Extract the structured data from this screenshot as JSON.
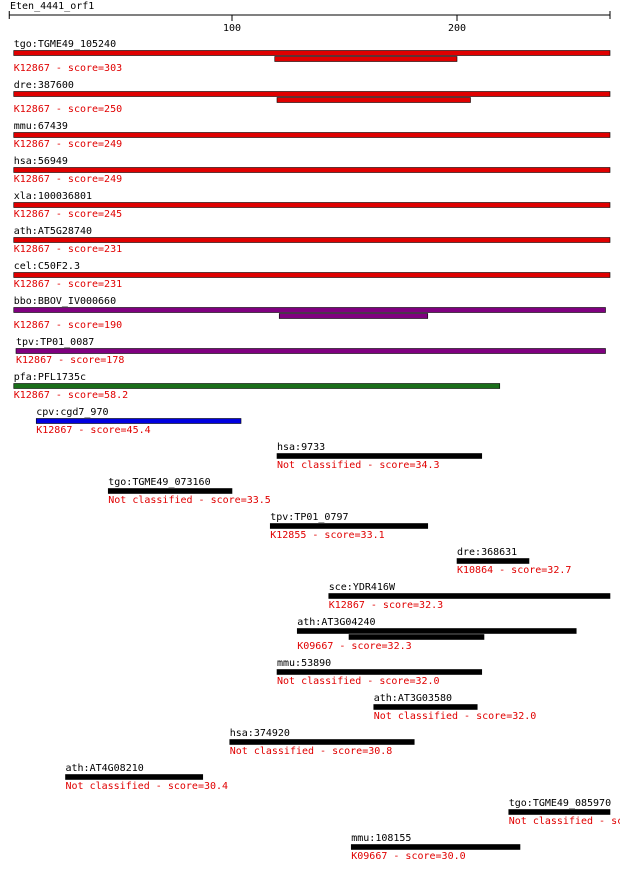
{
  "title": "Eten_4441_orf1",
  "axis": {
    "xlim": [
      1,
      268
    ],
    "xticks": [
      100,
      200
    ]
  },
  "hits": [
    {
      "name": "tgo:TGME49_105240",
      "label": "K12867 - score=303",
      "color": "#e00000",
      "bars": [
        [
          3,
          268
        ],
        [
          119,
          200
        ]
      ]
    },
    {
      "name": "dre:387600",
      "label": "K12867 - score=250",
      "color": "#e00000",
      "bars": [
        [
          3,
          268
        ],
        [
          120,
          206
        ]
      ]
    },
    {
      "name": "mmu:67439",
      "label": "K12867 - score=249",
      "color": "#e00000",
      "bars": [
        [
          3,
          268
        ]
      ]
    },
    {
      "name": "hsa:56949",
      "label": "K12867 - score=249",
      "color": "#e00000",
      "bars": [
        [
          3,
          268
        ]
      ]
    },
    {
      "name": "xla:100036801",
      "label": "K12867 - score=245",
      "color": "#e00000",
      "bars": [
        [
          3,
          268
        ]
      ]
    },
    {
      "name": "ath:AT5G28740",
      "label": "K12867 - score=231",
      "color": "#e00000",
      "bars": [
        [
          3,
          268
        ]
      ]
    },
    {
      "name": "cel:C50F2.3",
      "label": "K12867 - score=231",
      "color": "#e00000",
      "bars": [
        [
          3,
          268
        ]
      ]
    },
    {
      "name": "bbo:BBOV_IV000660",
      "label": "K12867 - score=190",
      "color": "#800080",
      "bars": [
        [
          3,
          266
        ],
        [
          121,
          187
        ]
      ]
    },
    {
      "name": "tpv:TP01_0087",
      "label": "K12867 - score=178",
      "color": "#800080",
      "bars": [
        [
          4,
          266
        ]
      ]
    },
    {
      "name": "pfa:PFL1735c",
      "label": "K12867 - score=58.2",
      "color": "#1a6e1a",
      "bars": [
        [
          3,
          219
        ]
      ]
    },
    {
      "name": "cpv:cgd7_970",
      "label": "K12867 - score=45.4",
      "color": "#0000e0",
      "bars": [
        [
          13,
          104
        ]
      ]
    },
    {
      "name": "hsa:9733",
      "label": "Not classified - score=34.3",
      "color": "#000000",
      "bars": [
        [
          120,
          211
        ]
      ]
    },
    {
      "name": "tgo:TGME49_073160",
      "label": "Not classified - score=33.5",
      "color": "#000000",
      "bars": [
        [
          45,
          100
        ]
      ]
    },
    {
      "name": "tpv:TP01_0797",
      "label": "K12855 - score=33.1",
      "color": "#000000",
      "bars": [
        [
          117,
          187
        ]
      ]
    },
    {
      "name": "dre:368631",
      "label": "K10864 - score=32.7",
      "color": "#000000",
      "bars": [
        [
          200,
          232
        ]
      ]
    },
    {
      "name": "sce:YDR416W",
      "label": "K12867 - score=32.3",
      "color": "#000000",
      "bars": [
        [
          143,
          268
        ]
      ]
    },
    {
      "name": "ath:AT3G04240",
      "label": "K09667 - score=32.3",
      "color": "#000000",
      "bars": [
        [
          129,
          253
        ],
        [
          152,
          212
        ]
      ]
    },
    {
      "name": "mmu:53890",
      "label": "Not classified - score=32.0",
      "color": "#000000",
      "bars": [
        [
          120,
          211
        ]
      ]
    },
    {
      "name": "ath:AT3G03580",
      "label": "Not classified - score=32.0",
      "color": "#000000",
      "bars": [
        [
          163,
          209
        ]
      ]
    },
    {
      "name": "hsa:374920",
      "label": "Not classified - score=30.8",
      "color": "#000000",
      "bars": [
        [
          99,
          181
        ]
      ]
    },
    {
      "name": "ath:AT4G08210",
      "label": "Not classified - score=30.4",
      "color": "#000000",
      "bars": [
        [
          26,
          87
        ]
      ]
    },
    {
      "name": "tgo:TGME49_085970",
      "label": "Not classified - sc",
      "color": "#000000",
      "bars": [
        [
          223,
          268
        ]
      ]
    },
    {
      "name": "mmu:108155",
      "label": "K09667 - score=30.0",
      "color": "#000000",
      "bars": [
        [
          153,
          228
        ]
      ]
    }
  ]
}
